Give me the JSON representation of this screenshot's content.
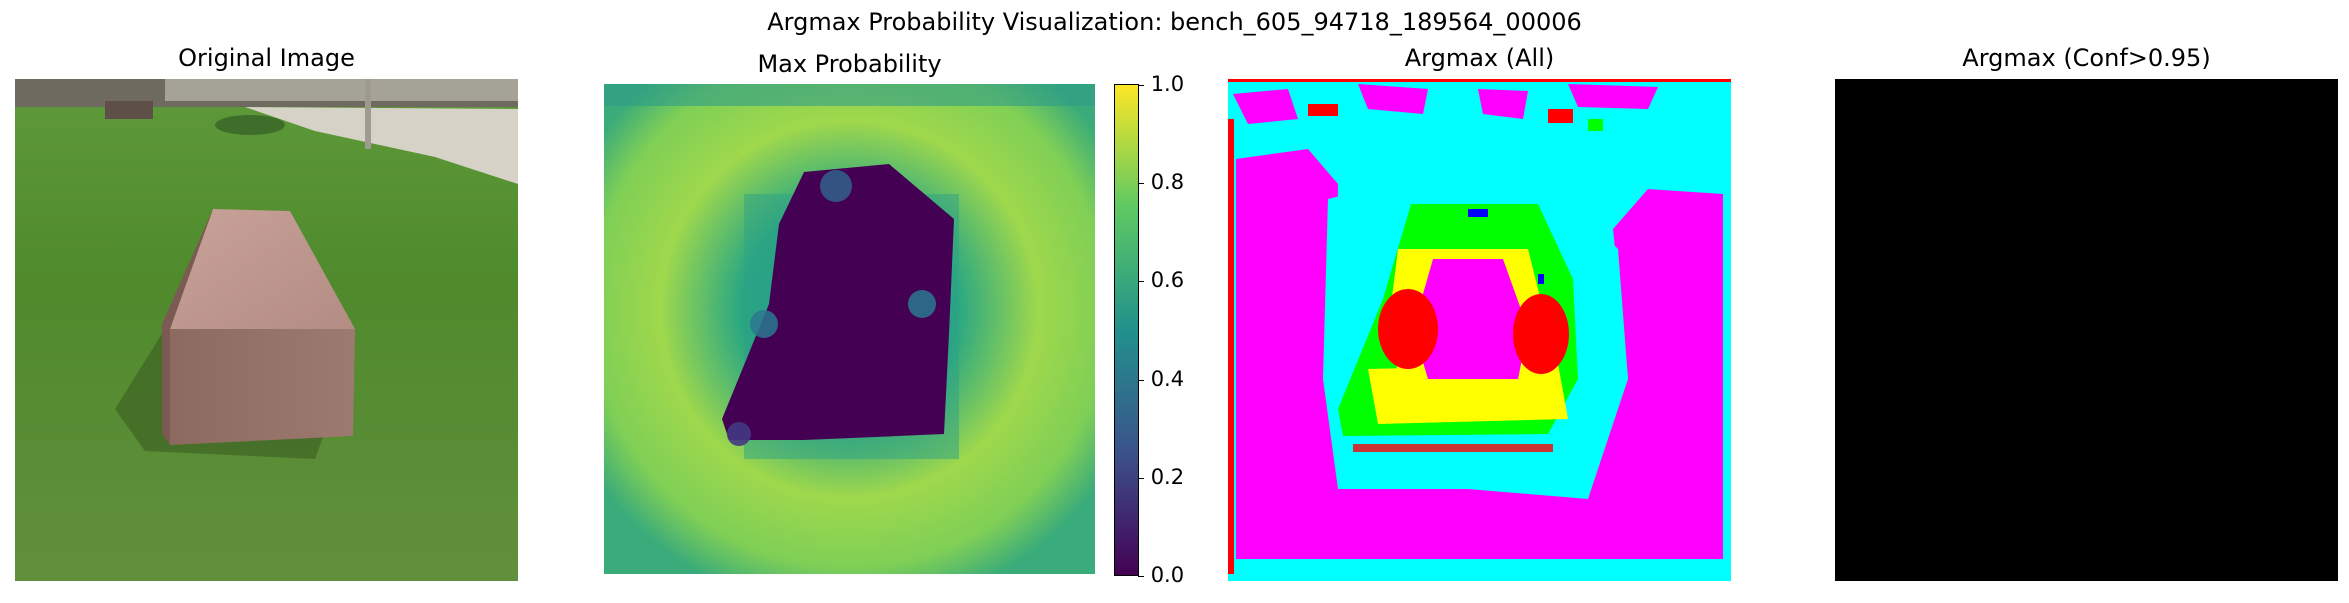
{
  "figure": {
    "suptitle": "Argmax Probability Visualization: bench_605_94718_189564_00006"
  },
  "panels": [
    {
      "title": "Original Image"
    },
    {
      "title": "Max Probability"
    },
    {
      "title": "Argmax (All)"
    },
    {
      "title": "Argmax (Conf>0.95)"
    }
  ],
  "colorbar": {
    "ticks": [
      "1.0",
      "0.8",
      "0.6",
      "0.4",
      "0.2",
      "0.0"
    ],
    "colormap": "viridis",
    "colors": [
      "#440154",
      "#3b528b",
      "#21918c",
      "#5ec962",
      "#fde725"
    ]
  },
  "segmentation_colors": {
    "cyan": "#00ffff",
    "magenta": "#ff00ff",
    "green": "#00ff00",
    "yellow": "#ffff00",
    "red": "#ff0000",
    "blue": "#0000ff"
  }
}
